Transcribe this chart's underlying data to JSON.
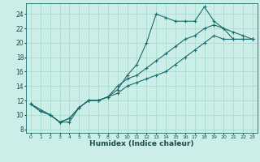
{
  "title": "",
  "xlabel": "Humidex (Indice chaleur)",
  "ylabel": "",
  "background_color": "#cceee8",
  "line_color": "#1a6b6b",
  "grid_color": "#aaddcc",
  "xlim": [
    -0.5,
    23.5
  ],
  "ylim": [
    7.5,
    25.5
  ],
  "xticks": [
    0,
    1,
    2,
    3,
    4,
    5,
    6,
    7,
    8,
    9,
    10,
    11,
    12,
    13,
    14,
    15,
    16,
    17,
    18,
    19,
    20,
    21,
    22,
    23
  ],
  "yticks": [
    8,
    10,
    12,
    14,
    16,
    18,
    20,
    22,
    24
  ],
  "line1_x": [
    0,
    1,
    2,
    3,
    4,
    5,
    6,
    7,
    8,
    9,
    10,
    11,
    12,
    13,
    14,
    15,
    16,
    17,
    18,
    19,
    20,
    21,
    22,
    23
  ],
  "line1_y": [
    11.5,
    10.5,
    10.0,
    9.0,
    9.5,
    11.0,
    12.0,
    12.0,
    12.5,
    13.5,
    15.5,
    17.0,
    20.0,
    24.0,
    23.5,
    23.0,
    23.0,
    23.0,
    25.0,
    23.0,
    22.0,
    20.5,
    20.5,
    20.5
  ],
  "line2_x": [
    0,
    1,
    2,
    3,
    4,
    5,
    6,
    7,
    8,
    9,
    10,
    11,
    12,
    13,
    14,
    15,
    16,
    17,
    18,
    19,
    20,
    21,
    22,
    23
  ],
  "line2_y": [
    11.5,
    10.5,
    10.0,
    9.0,
    9.5,
    11.0,
    12.0,
    12.0,
    12.5,
    14.0,
    15.0,
    15.5,
    16.5,
    17.5,
    18.5,
    19.5,
    20.5,
    21.0,
    22.0,
    22.5,
    22.0,
    21.5,
    21.0,
    20.5
  ],
  "line3_x": [
    0,
    2,
    3,
    4,
    5,
    6,
    7,
    8,
    9,
    10,
    11,
    12,
    13,
    14,
    15,
    16,
    17,
    18,
    19,
    20,
    21,
    22,
    23
  ],
  "line3_y": [
    11.5,
    10.0,
    9.0,
    9.0,
    11.0,
    12.0,
    12.0,
    12.5,
    13.0,
    14.0,
    14.5,
    15.0,
    15.5,
    16.0,
    17.0,
    18.0,
    19.0,
    20.0,
    21.0,
    20.5,
    20.5,
    20.5,
    20.5
  ],
  "xlabel_fontsize": 6.5,
  "xlabel_color": "#1a4a4a",
  "xtick_fontsize": 4.5,
  "ytick_fontsize": 5.5,
  "linewidth": 0.8,
  "markersize": 3.0,
  "markeredgewidth": 0.8
}
